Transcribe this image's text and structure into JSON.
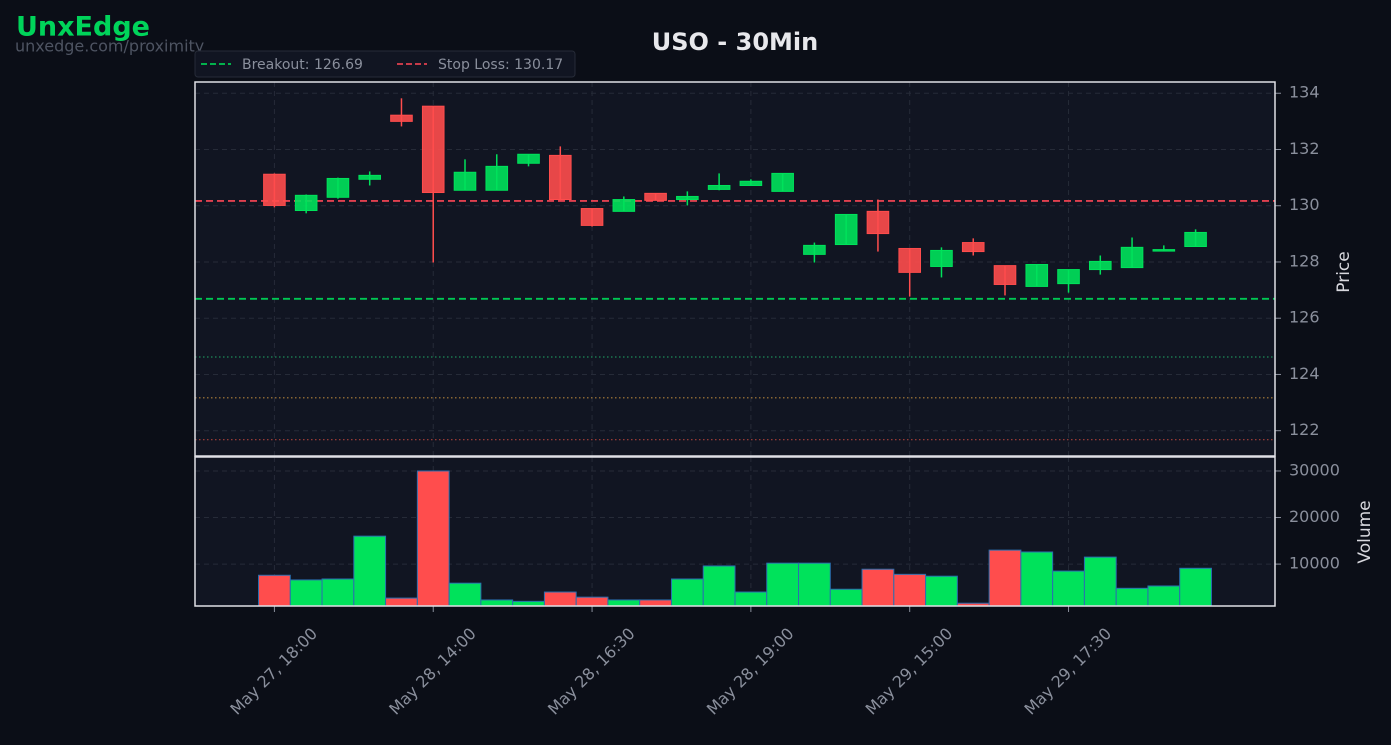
{
  "header": {
    "brand": "UnxEdge",
    "url": "unxedge.com/proximity"
  },
  "chart_data": [
    {
      "type": "candlestick",
      "title": "USO - 30Min",
      "y_label": "Price",
      "up_color": "#00e25b",
      "down_color": "#ff4d4d",
      "open": [
        131.12,
        129.83,
        130.3,
        130.94,
        133.22,
        133.54,
        130.55,
        130.55,
        131.51,
        131.79,
        129.9,
        129.8,
        130.44,
        130.22,
        130.58,
        130.72,
        130.51,
        128.27,
        128.62,
        129.8,
        128.48,
        127.84,
        128.69,
        127.87,
        127.13,
        127.23,
        127.73,
        127.8,
        128.41,
        128.55
      ],
      "high": [
        131.15,
        130.4,
        131.0,
        131.22,
        133.82,
        133.54,
        131.65,
        131.83,
        131.83,
        132.11,
        129.9,
        130.33,
        130.44,
        130.51,
        131.15,
        130.94,
        131.15,
        128.69,
        129.69,
        130.22,
        128.48,
        128.52,
        128.84,
        127.87,
        127.91,
        127.73,
        128.23,
        128.87,
        128.59,
        129.16
      ],
      "low": [
        129.94,
        129.73,
        130.25,
        130.72,
        132.82,
        127.98,
        130.55,
        130.55,
        131.4,
        130.19,
        129.26,
        129.8,
        130.19,
        130.01,
        130.55,
        130.72,
        130.51,
        127.98,
        128.62,
        128.37,
        126.77,
        127.45,
        128.23,
        126.81,
        127.13,
        126.91,
        127.55,
        127.8,
        128.41,
        128.55
      ],
      "close": [
        130.01,
        130.37,
        130.97,
        131.08,
        133.0,
        130.47,
        131.19,
        131.4,
        131.83,
        130.22,
        129.3,
        130.22,
        130.19,
        130.33,
        130.72,
        130.87,
        131.15,
        128.59,
        129.69,
        129.01,
        127.63,
        128.41,
        128.37,
        127.2,
        127.91,
        127.73,
        128.02,
        128.52,
        128.44,
        129.05
      ],
      "lines": [
        {
          "name": "Breakout: 126.69",
          "value": 126.69,
          "color": "#00c853"
        },
        {
          "name": "Stop Loss: 130.17",
          "value": 130.17,
          "color": "#e0404f"
        }
      ],
      "levels": [
        {
          "value": 124.62,
          "color": "#1e8a5a"
        },
        {
          "value": 123.17,
          "color": "#b0803a"
        },
        {
          "value": 121.68,
          "color": "#a8403a"
        }
      ],
      "legend": "top-left",
      "ylim": [
        121.1,
        134.4
      ],
      "yticks": [
        122,
        124,
        126,
        128,
        130,
        132,
        134
      ],
      "grid": true
    },
    {
      "type": "bar",
      "y_label": "Volume",
      "edge_color": "#2a6fb0",
      "categories": [
        "May 27, 18:00",
        null,
        null,
        null,
        null,
        "May 28, 14:00",
        null,
        null,
        null,
        null,
        "May 28, 16:30",
        null,
        null,
        null,
        null,
        "May 28, 19:00",
        null,
        null,
        null,
        null,
        "May 29, 15:00",
        null,
        null,
        null,
        null,
        "May 29, 17:30",
        null,
        null,
        null,
        null
      ],
      "values": [
        7600,
        6600,
        6800,
        16000,
        2700,
        30000,
        5900,
        2300,
        2000,
        4000,
        2900,
        2300,
        2300,
        6800,
        9600,
        4000,
        10200,
        10200,
        4600,
        8900,
        7800,
        7400,
        1600,
        13000,
        12600,
        8500,
        11500,
        4800,
        5300,
        9100
      ],
      "ylim": [
        1000,
        33000
      ],
      "yticks": [
        10000,
        20000,
        30000
      ],
      "grid": true
    }
  ]
}
